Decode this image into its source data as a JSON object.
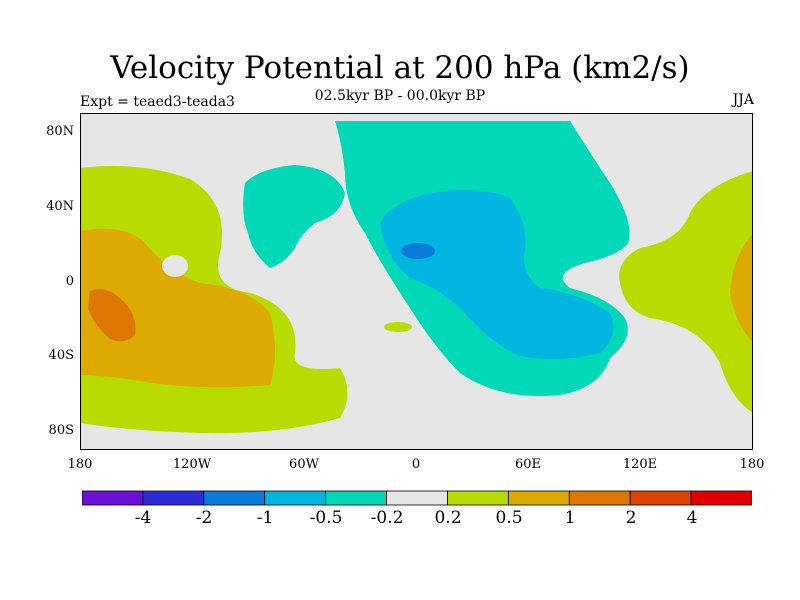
{
  "title": "Velocity Potential at 200 hPa (km2/s)",
  "subtitle": "02.5kyr BP - 00.0kyr BP",
  "experiment_label": "Expt = teaed3-teada3",
  "season": "JJA",
  "lat_labels": [
    "80N",
    "40N",
    "0",
    "40S",
    "80S"
  ],
  "lon_labels": [
    "180",
    "120W",
    "60W",
    "0",
    "60E",
    "120E",
    "180"
  ],
  "colorbar": {
    "labels": [
      "-4",
      "-2",
      "-1",
      "-0.5",
      "-0.2",
      "0.2",
      "0.5",
      "1",
      "2",
      "4"
    ],
    "colors": [
      "#6a10d8",
      "#2b2bd8",
      "#0a7bd8",
      "#00b5e0",
      "#00d8b8",
      "#e6e6e6",
      "#b8dc00",
      "#dcaa00",
      "#dc7800",
      "#dc4400",
      "#e00000"
    ]
  },
  "regions": {
    "background": "#e6e6e6",
    "colors": {
      "n0_5": "#00b5e0",
      "n1": "#0a7bd8",
      "n0_2": "#00d8b8",
      "p0_2": "#b8dc00",
      "p0_5": "#dcaa00",
      "p1": "#dc7800"
    }
  }
}
